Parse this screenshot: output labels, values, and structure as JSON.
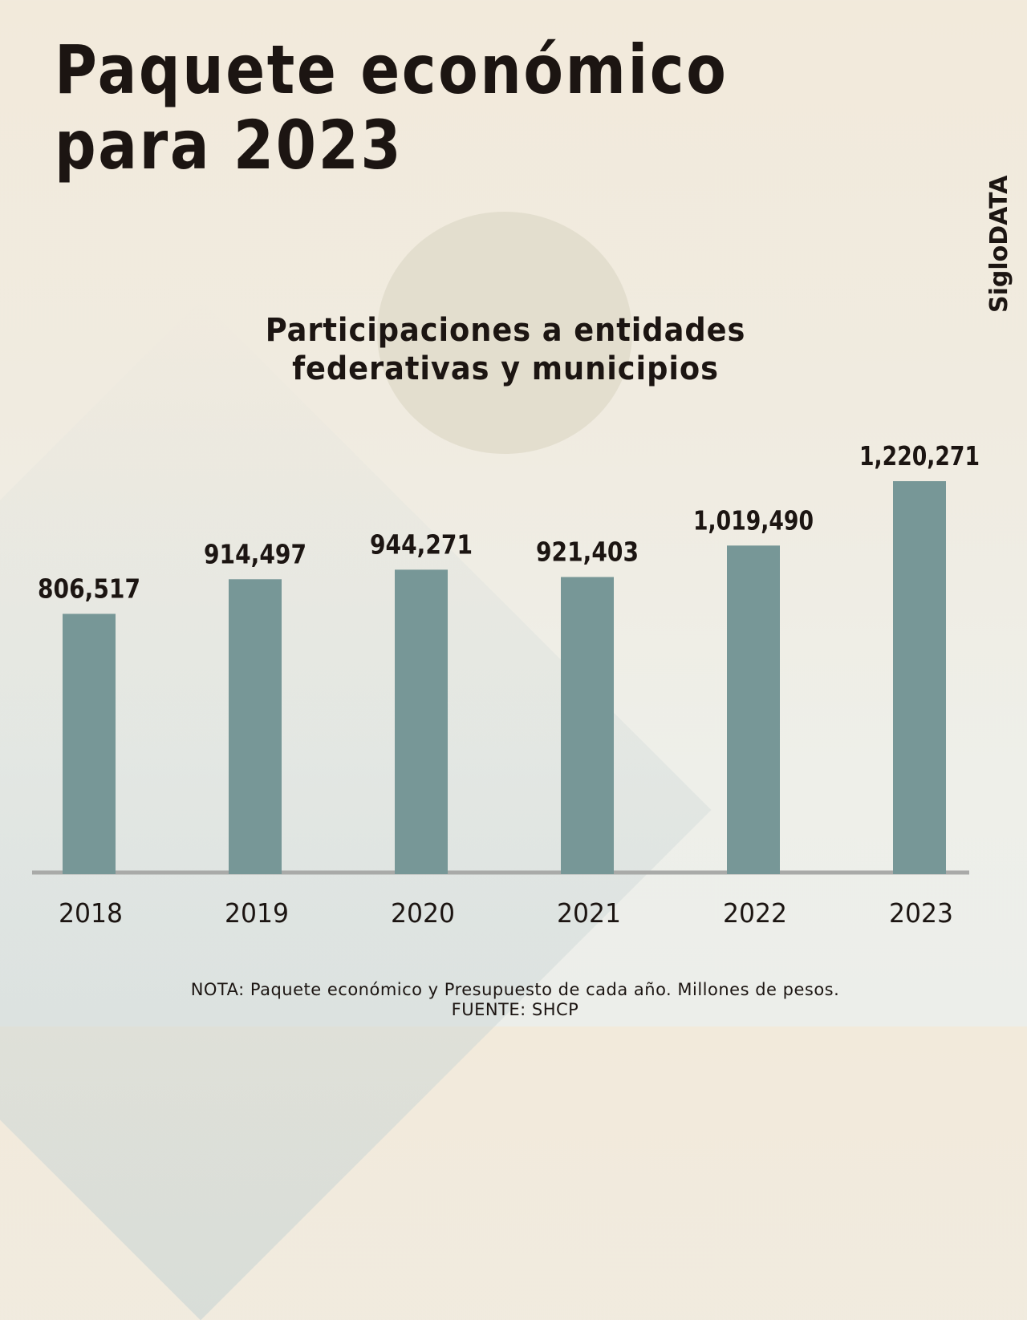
{
  "header": {
    "title_line1": "Paquete económico",
    "title_line2": "para 2023",
    "brand": "SigloDATA"
  },
  "footer": {
    "note": "NOTA: Paquete económico y Presupuesto de cada año. Millones de pesos.",
    "source": "FUENTE: SHCP"
  },
  "colors": {
    "bar": "#779797",
    "axis": "#a9aaa8",
    "text": "#1c1512"
  },
  "chart_data": {
    "type": "bar",
    "title": "Participaciones a entidades federativas y municipios",
    "title_lines": [
      "Participaciones a entidades",
      "federativas y municipios"
    ],
    "xlabel": "",
    "ylabel": "Millones de pesos",
    "categories": [
      "2018",
      "2019",
      "2020",
      "2021",
      "2022",
      "2023"
    ],
    "values": [
      806517,
      914497,
      944271,
      921403,
      1019490,
      1220271
    ],
    "value_labels": [
      "806,517",
      "914,497",
      "944,271",
      "921,403",
      "1,019,490",
      "1,220,271"
    ],
    "ylim": [
      0,
      1220271
    ],
    "grid": false,
    "legend": "none"
  }
}
